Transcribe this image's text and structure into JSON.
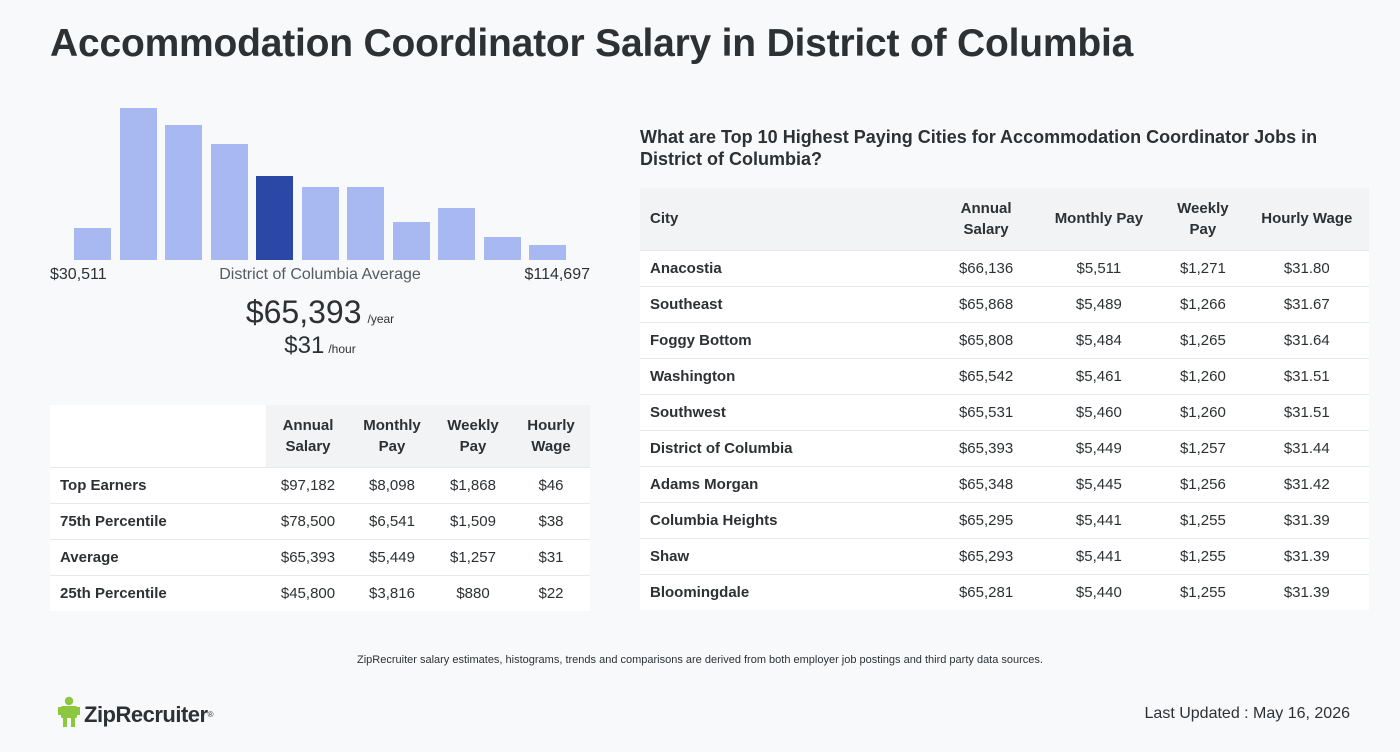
{
  "page": {
    "title": "Accommodation Coordinator Salary in District of Columbia"
  },
  "histogram": {
    "min_label": "$30,511",
    "max_label": "$114,697",
    "center_label": "District of Columbia Average",
    "bar_color": "#a8b8f0",
    "highlight_color": "#2b48a6",
    "highlight_index": 4
  },
  "chart_data": {
    "type": "bar",
    "categories": [
      "1",
      "2",
      "3",
      "4",
      "5",
      "6",
      "7",
      "8",
      "9",
      "10",
      "11"
    ],
    "values": [
      21,
      100,
      89,
      76,
      55,
      48,
      48,
      25,
      34,
      15,
      10
    ],
    "title": "",
    "xlabel": "",
    "ylabel": ""
  },
  "average": {
    "yearly": "$65,393",
    "yearly_unit": "/year",
    "hourly": "$31",
    "hourly_unit": "/hour"
  },
  "percentile_table": {
    "headers": {
      "annual": "Annual Salary",
      "monthly": "Monthly Pay",
      "weekly": "Weekly Pay",
      "hourly": "Hourly Wage"
    },
    "rows": [
      {
        "label": "Top Earners",
        "annual": "$97,182",
        "monthly": "$8,098",
        "weekly": "$1,868",
        "hourly": "$46"
      },
      {
        "label": "75th Percentile",
        "annual": "$78,500",
        "monthly": "$6,541",
        "weekly": "$1,509",
        "hourly": "$38"
      },
      {
        "label": "Average",
        "annual": "$65,393",
        "monthly": "$5,449",
        "weekly": "$1,257",
        "hourly": "$31"
      },
      {
        "label": "25th Percentile",
        "annual": "$45,800",
        "monthly": "$3,816",
        "weekly": "$880",
        "hourly": "$22"
      }
    ]
  },
  "cities": {
    "title": "What are Top 10 Highest Paying Cities for Accommodation Coordinator Jobs in District of Columbia?",
    "headers": {
      "city": "City",
      "annual": "Annual Salary",
      "monthly": "Monthly Pay",
      "weekly": "Weekly Pay",
      "hourly": "Hourly Wage"
    },
    "rows": [
      {
        "city": "Anacostia",
        "annual": "$66,136",
        "monthly": "$5,511",
        "weekly": "$1,271",
        "hourly": "$31.80"
      },
      {
        "city": "Southeast",
        "annual": "$65,868",
        "monthly": "$5,489",
        "weekly": "$1,266",
        "hourly": "$31.67"
      },
      {
        "city": "Foggy Bottom",
        "annual": "$65,808",
        "monthly": "$5,484",
        "weekly": "$1,265",
        "hourly": "$31.64"
      },
      {
        "city": "Washington",
        "annual": "$65,542",
        "monthly": "$5,461",
        "weekly": "$1,260",
        "hourly": "$31.51"
      },
      {
        "city": "Southwest",
        "annual": "$65,531",
        "monthly": "$5,460",
        "weekly": "$1,260",
        "hourly": "$31.51"
      },
      {
        "city": "District of Columbia",
        "annual": "$65,393",
        "monthly": "$5,449",
        "weekly": "$1,257",
        "hourly": "$31.44"
      },
      {
        "city": "Adams Morgan",
        "annual": "$65,348",
        "monthly": "$5,445",
        "weekly": "$1,256",
        "hourly": "$31.42"
      },
      {
        "city": "Columbia Heights",
        "annual": "$65,295",
        "monthly": "$5,441",
        "weekly": "$1,255",
        "hourly": "$31.39"
      },
      {
        "city": "Shaw",
        "annual": "$65,293",
        "monthly": "$5,441",
        "weekly": "$1,255",
        "hourly": "$31.39"
      },
      {
        "city": "Bloomingdale",
        "annual": "$65,281",
        "monthly": "$5,440",
        "weekly": "$1,255",
        "hourly": "$31.39"
      }
    ]
  },
  "footer": {
    "disclaimer": "ZipRecruiter salary estimates, histograms, trends and comparisons are derived from both employer job postings and third party data sources.",
    "logo_text": "ZipRecruiter",
    "logo_icon": "ziprecruiter-mascot-icon",
    "logo_color": "#8dc63f",
    "last_updated": "Last Updated : May 16, 2026"
  }
}
